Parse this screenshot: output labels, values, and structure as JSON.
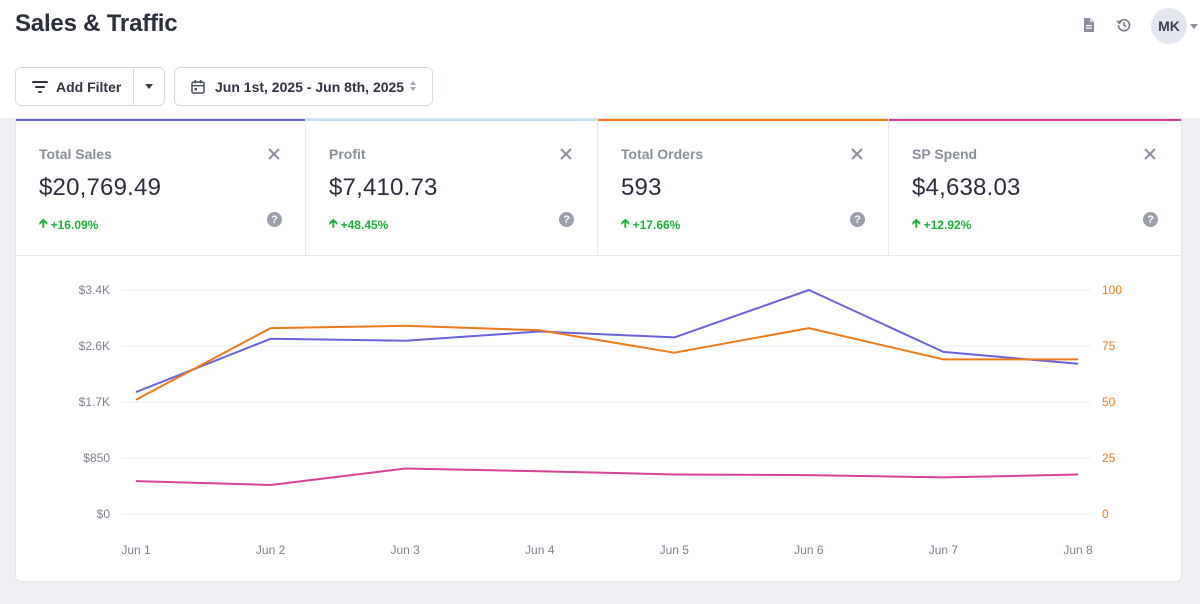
{
  "header": {
    "title": "Sales & Traffic",
    "icons": [
      "document-icon",
      "history-icon"
    ],
    "avatar_initials": "MK"
  },
  "filters": {
    "add_filter_label": "Add Filter",
    "date_range": "Jun 1st, 2025 - Jun 8th, 2025"
  },
  "kpis": [
    {
      "label": "Total Sales",
      "value": "$20,769.49",
      "change": "+16.09%",
      "color": "#6c63e0"
    },
    {
      "label": "Profit",
      "value": "$7,410.73",
      "change": "+48.45%",
      "color": "#bfe3f0"
    },
    {
      "label": "Total Orders",
      "value": "593",
      "change": "+17.66%",
      "color": "#f07a1a"
    },
    {
      "label": "SP Spend",
      "value": "$4,638.03",
      "change": "+12.92%",
      "color": "#d43f8d"
    }
  ],
  "colors": {
    "positive": "#1fae3c",
    "sales_line": "#6a62dd",
    "orders_line": "#f07a1a",
    "spend_line": "#d94194"
  },
  "chart_data": {
    "type": "line",
    "categories": [
      "Jun 1",
      "Jun 2",
      "Jun 3",
      "Jun 4",
      "Jun 5",
      "Jun 6",
      "Jun 7",
      "Jun 8"
    ],
    "y_left": {
      "ticks": [
        "$0",
        "$850",
        "$1.7K",
        "$2.6K",
        "$3.4K"
      ],
      "range": [
        0,
        3400
      ]
    },
    "y_right": {
      "ticks": [
        "0",
        "25",
        "50",
        "75",
        "100"
      ],
      "range": [
        0,
        100
      ]
    },
    "series": [
      {
        "name": "Total Sales",
        "axis": "left",
        "color": "#6a62dd",
        "values": [
          1850,
          2660,
          2630,
          2770,
          2680,
          3400,
          2460,
          2280
        ]
      },
      {
        "name": "Total Orders",
        "axis": "right",
        "color": "#f07a1a",
        "values": [
          51,
          83,
          84,
          82,
          72,
          83,
          69,
          69
        ]
      },
      {
        "name": "SP Spend",
        "axis": "left",
        "color": "#d94194",
        "values": [
          500,
          440,
          690,
          650,
          600,
          590,
          555,
          600
        ]
      }
    ]
  }
}
